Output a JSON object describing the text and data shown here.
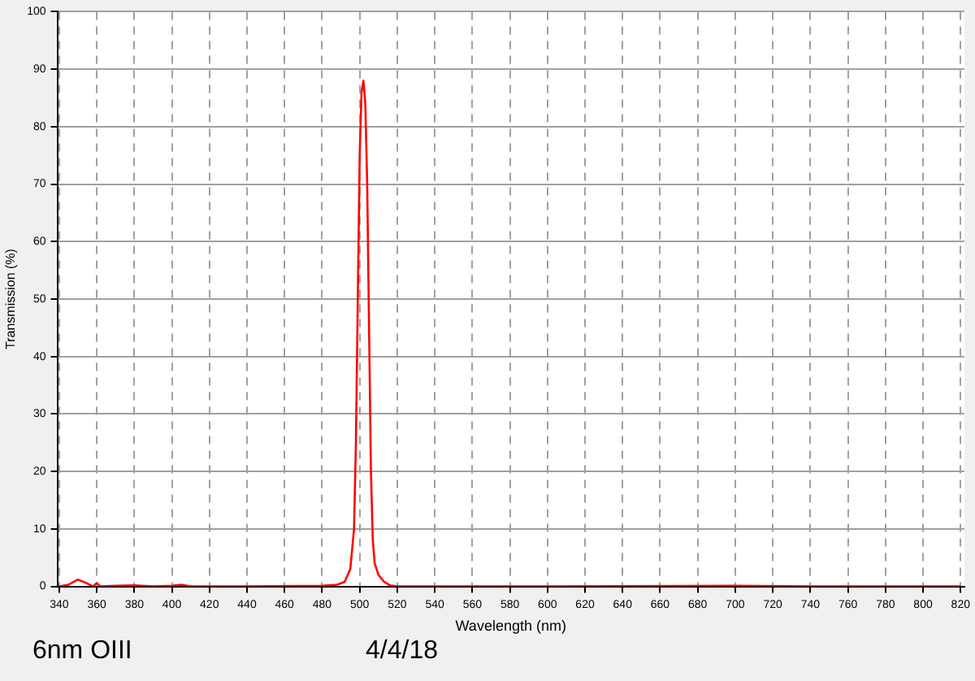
{
  "chart_data": {
    "type": "line",
    "xlabel": "Wavelength (nm)",
    "ylabel": "Transmission (%)",
    "annotations": [
      "6nm OIII",
      "4/4/18"
    ],
    "series": [
      {
        "color": "#ff0000",
        "x": [
          340,
          345,
          350,
          355,
          358,
          360,
          362,
          370,
          380,
          390,
          400,
          405,
          410,
          440,
          480,
          488,
          492,
          495,
          497,
          498,
          499,
          500,
          501,
          502,
          503,
          504,
          505,
          506,
          507,
          508,
          510,
          513,
          516,
          520,
          600,
          700,
          740,
          820
        ],
        "values": [
          0,
          0.3,
          1.2,
          0.5,
          0,
          0.6,
          0,
          0.1,
          0.2,
          0,
          0.1,
          0.3,
          0,
          0,
          0.1,
          0.3,
          0.8,
          3,
          10,
          25,
          50,
          75,
          86,
          88,
          84,
          70,
          45,
          20,
          8,
          4,
          2,
          0.8,
          0.2,
          0,
          0,
          0.1,
          0,
          0
        ]
      }
    ],
    "xlim": [
      339,
      822
    ],
    "xticks": [
      340,
      360,
      380,
      400,
      420,
      440,
      460,
      480,
      500,
      520,
      540,
      560,
      580,
      600,
      620,
      640,
      660,
      680,
      700,
      720,
      740,
      760,
      780,
      800,
      820
    ],
    "ylim": [
      0,
      100
    ],
    "yticks": [
      0,
      10,
      20,
      30,
      40,
      50,
      60,
      70,
      80,
      90,
      100
    ],
    "grid": true,
    "legend": false,
    "marker": "none",
    "line_style": "solid"
  }
}
